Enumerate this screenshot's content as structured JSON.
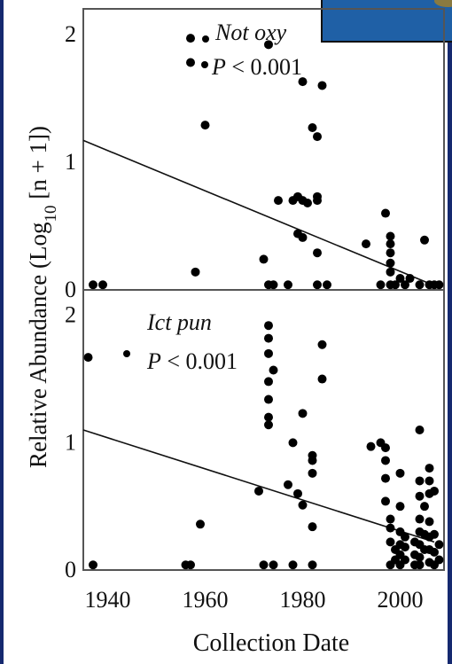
{
  "page": {
    "background": "#15296f",
    "panel_background": "#ffffff",
    "point_color": "#000000"
  },
  "chart_data": [
    {
      "type": "scatter",
      "title": "",
      "xlabel": "Collection Date",
      "ylabel": "Relative Abundance (Log10 [n + 1])",
      "xlim": [
        1935,
        2009
      ],
      "ylim": [
        0,
        2.2
      ],
      "x_ticks": [],
      "y_ticks": [
        0,
        1,
        2
      ],
      "annotation_species": "Not oxy",
      "annotation_p": "P < 0.001",
      "trend": {
        "x": [
          1935,
          2006
        ],
        "y": [
          1.17,
          0.05
        ]
      },
      "points": [
        [
          1937,
          0.04
        ],
        [
          1939,
          0.04
        ],
        [
          1957,
          1.97
        ],
        [
          1957,
          1.78
        ],
        [
          1958,
          0.14
        ],
        [
          1960,
          1.29
        ],
        [
          1972,
          0.24
        ],
        [
          1973,
          1.92
        ],
        [
          1973,
          0.04
        ],
        [
          1974,
          0.04
        ],
        [
          1975,
          0.7
        ],
        [
          1977,
          0.04
        ],
        [
          1978,
          0.7
        ],
        [
          1979,
          0.73
        ],
        [
          1979,
          0.44
        ],
        [
          1980,
          0.41
        ],
        [
          1980,
          0.7
        ],
        [
          1980,
          1.63
        ],
        [
          1981,
          0.68
        ],
        [
          1982,
          1.27
        ],
        [
          1983,
          1.2
        ],
        [
          1983,
          0.7
        ],
        [
          1983,
          0.73
        ],
        [
          1983,
          0.29
        ],
        [
          1983,
          0.04
        ],
        [
          1984,
          1.6
        ],
        [
          1985,
          0.04
        ],
        [
          1993,
          0.36
        ],
        [
          1996,
          0.04
        ],
        [
          1997,
          0.6
        ],
        [
          1998,
          0.42
        ],
        [
          1998,
          0.36
        ],
        [
          1998,
          0.29
        ],
        [
          1998,
          0.21
        ],
        [
          1998,
          0.14
        ],
        [
          1998,
          0.04
        ],
        [
          1999,
          0.04
        ],
        [
          2000,
          0.09
        ],
        [
          2001,
          0.04
        ],
        [
          2002,
          0.09
        ],
        [
          2004,
          0.04
        ],
        [
          2005,
          0.39
        ],
        [
          2006,
          0.04
        ],
        [
          2007,
          0.04
        ],
        [
          2008,
          0.04
        ]
      ]
    },
    {
      "type": "scatter",
      "title": "",
      "xlabel": "Collection Date",
      "ylabel": "Relative Abundance (Log10 [n + 1])",
      "xlim": [
        1935,
        2009
      ],
      "ylim": [
        0,
        2.2
      ],
      "x_ticks": [
        1940,
        1960,
        1980,
        2000
      ],
      "y_ticks": [
        0,
        1,
        2
      ],
      "annotation_species": "Ict pun",
      "annotation_p": "P < 0.001",
      "trend": {
        "x": [
          1935,
          2007
        ],
        "y": [
          1.1,
          0.22
        ]
      },
      "points": [
        [
          1936,
          1.67
        ],
        [
          1937,
          0.04
        ],
        [
          1956,
          0.04
        ],
        [
          1957,
          0.04
        ],
        [
          1959,
          0.36
        ],
        [
          1971,
          0.62
        ],
        [
          1972,
          0.04
        ],
        [
          1973,
          1.92
        ],
        [
          1973,
          1.82
        ],
        [
          1973,
          1.7
        ],
        [
          1973,
          1.48
        ],
        [
          1973,
          1.34
        ],
        [
          1973,
          1.2
        ],
        [
          1973,
          1.14
        ],
        [
          1974,
          0.04
        ],
        [
          1974,
          1.57
        ],
        [
          1977,
          0.67
        ],
        [
          1978,
          1.0
        ],
        [
          1978,
          0.04
        ],
        [
          1979,
          0.6
        ],
        [
          1980,
          1.23
        ],
        [
          1980,
          0.51
        ],
        [
          1982,
          0.9
        ],
        [
          1982,
          0.86
        ],
        [
          1982,
          0.76
        ],
        [
          1982,
          0.34
        ],
        [
          1982,
          0.04
        ],
        [
          1984,
          1.77
        ],
        [
          1984,
          1.5
        ],
        [
          1994,
          0.97
        ],
        [
          1996,
          1.0
        ],
        [
          1997,
          0.96
        ],
        [
          1997,
          0.86
        ],
        [
          1997,
          0.72
        ],
        [
          1997,
          0.54
        ],
        [
          1998,
          0.4
        ],
        [
          1998,
          0.33
        ],
        [
          1998,
          0.22
        ],
        [
          1998,
          0.04
        ],
        [
          1999,
          0.16
        ],
        [
          1999,
          0.08
        ],
        [
          2000,
          0.76
        ],
        [
          2000,
          0.5
        ],
        [
          2000,
          0.3
        ],
        [
          2000,
          0.2
        ],
        [
          2000,
          0.12
        ],
        [
          2000,
          0.04
        ],
        [
          2001,
          0.26
        ],
        [
          2001,
          0.18
        ],
        [
          2001,
          0.08
        ],
        [
          2003,
          0.22
        ],
        [
          2003,
          0.12
        ],
        [
          2003,
          0.04
        ],
        [
          2004,
          1.1
        ],
        [
          2004,
          0.7
        ],
        [
          2004,
          0.58
        ],
        [
          2004,
          0.4
        ],
        [
          2004,
          0.3
        ],
        [
          2004,
          0.2
        ],
        [
          2004,
          0.1
        ],
        [
          2004,
          0.04
        ],
        [
          2005,
          0.5
        ],
        [
          2005,
          0.28
        ],
        [
          2005,
          0.16
        ],
        [
          2006,
          0.8
        ],
        [
          2006,
          0.7
        ],
        [
          2006,
          0.6
        ],
        [
          2006,
          0.38
        ],
        [
          2006,
          0.26
        ],
        [
          2006,
          0.16
        ],
        [
          2006,
          0.06
        ],
        [
          2007,
          0.62
        ],
        [
          2007,
          0.28
        ],
        [
          2007,
          0.14
        ],
        [
          2007,
          0.04
        ],
        [
          2008,
          0.2
        ],
        [
          2008,
          0.08
        ]
      ]
    }
  ]
}
